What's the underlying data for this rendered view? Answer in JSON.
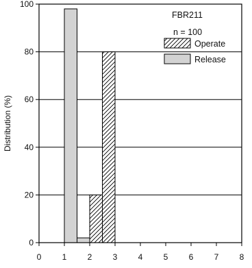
{
  "chart_data": {
    "type": "bar",
    "title": "",
    "xlabel": "",
    "ylabel": "Distribution (%)",
    "xlim": [
      0,
      8
    ],
    "ylim": [
      0,
      100
    ],
    "x_ticks": [
      "0",
      "1",
      "2",
      "3",
      "4",
      "5",
      "6",
      "7",
      "8"
    ],
    "y_ticks": [
      "0",
      "20",
      "40",
      "60",
      "80",
      "100"
    ],
    "grid": "horizontal",
    "legend_position": "top-right",
    "annotations": [
      "FBR211",
      "n = 100"
    ],
    "series": [
      {
        "name": "Release",
        "style": "solid-gray",
        "color": "#d3d3d3",
        "bars": [
          {
            "x_start": 1.0,
            "x_end": 1.5,
            "value": 98
          },
          {
            "x_start": 1.5,
            "x_end": 2.0,
            "value": 2
          }
        ]
      },
      {
        "name": "Operate",
        "style": "hatched",
        "color": "#ffffff",
        "bars": [
          {
            "x_start": 2.0,
            "x_end": 2.5,
            "value": 20
          },
          {
            "x_start": 2.5,
            "x_end": 3.0,
            "value": 80
          }
        ]
      }
    ]
  }
}
